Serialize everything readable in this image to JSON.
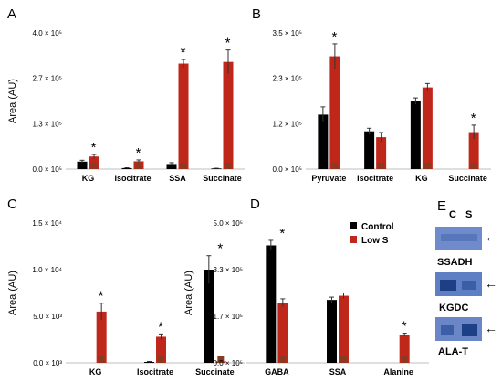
{
  "colors": {
    "control": "#000000",
    "low_s": "#c0271b",
    "low_s_mark": "#8b3a1f",
    "blot_bg": "#5f7fc4",
    "blot_dark": "#1d3f86"
  },
  "legend": {
    "control": "Control",
    "low_s": "Low S"
  },
  "chart_data": [
    {
      "panel": "A",
      "type": "bar",
      "ylabel": "Area (AU)",
      "yticks": [
        "4.0 × 10⁵",
        "2.7 × 10⁵",
        "1.3 × 10⁵",
        "0.0 × 10⁵"
      ],
      "ylim": [
        0,
        400000
      ],
      "categories": [
        "KG",
        "Isocitrate",
        "SSA",
        "Succinate"
      ],
      "series": [
        {
          "name": "Control",
          "values": [
            22000,
            3000,
            15000,
            2000
          ],
          "errors": [
            4000,
            1000,
            4000,
            500
          ]
        },
        {
          "name": "Low S",
          "values": [
            37000,
            23000,
            310000,
            315000
          ],
          "errors": [
            6000,
            4000,
            12000,
            35000
          ]
        }
      ],
      "significant": [
        true,
        true,
        true,
        true
      ]
    },
    {
      "panel": "B",
      "type": "bar",
      "ylabel": "",
      "yticks": [
        "3.5 × 10⁵",
        "2.3 × 10⁵",
        "1.2 × 10⁵",
        "0.0 × 10⁵"
      ],
      "ylim": [
        0,
        350000
      ],
      "categories": [
        "Pyruvate",
        "Isocitrate",
        "KG",
        "Succinate"
      ],
      "series": [
        {
          "name": "Control",
          "values": [
            140000,
            97000,
            175000,
            0
          ],
          "errors": [
            20000,
            8000,
            8000,
            0
          ]
        },
        {
          "name": "Low S",
          "values": [
            290000,
            82000,
            210000,
            95000
          ],
          "errors": [
            32000,
            12000,
            10000,
            18000
          ]
        }
      ],
      "significant": [
        true,
        false,
        false,
        true
      ]
    },
    {
      "panel": "C",
      "type": "bar",
      "ylabel": "Area (AU)",
      "yticks": [
        "1.5 × 10⁴",
        "1.0 × 10⁴",
        "5.0 × 10³",
        "0.0 × 10³"
      ],
      "ylim": [
        0,
        15000
      ],
      "categories": [
        "KG",
        "Isocitrate",
        "Succinate"
      ],
      "series": [
        {
          "name": "Control",
          "values": [
            0,
            100,
            10000
          ],
          "errors": [
            0,
            50,
            1500
          ]
        },
        {
          "name": "Low S",
          "values": [
            5500,
            2800,
            150
          ],
          "errors": [
            900,
            300,
            60
          ]
        }
      ],
      "significant": [
        true,
        true,
        true
      ]
    },
    {
      "panel": "D",
      "type": "bar",
      "ylabel": "Area (AU)",
      "yticks": [
        "5.0 × 10⁵",
        "3.3 × 10⁵",
        "1.7 × 10⁵",
        "0.0 × 10⁵"
      ],
      "ylim": [
        0,
        500000
      ],
      "categories": [
        "GABA",
        "SSA",
        "Alanine"
      ],
      "series": [
        {
          "name": "Control",
          "values": [
            420000,
            225000,
            0
          ],
          "errors": [
            18000,
            10000,
            0
          ]
        },
        {
          "name": "Low S",
          "values": [
            215000,
            240000,
            100000
          ],
          "errors": [
            14000,
            10000,
            6000
          ]
        }
      ],
      "significant": [
        true,
        false,
        true
      ]
    }
  ],
  "panel_e": {
    "letter": "E",
    "lanes": [
      "C",
      "S"
    ],
    "blots": [
      "SSADH",
      "KGDC",
      "ALA-T"
    ],
    "arrow": "←"
  }
}
